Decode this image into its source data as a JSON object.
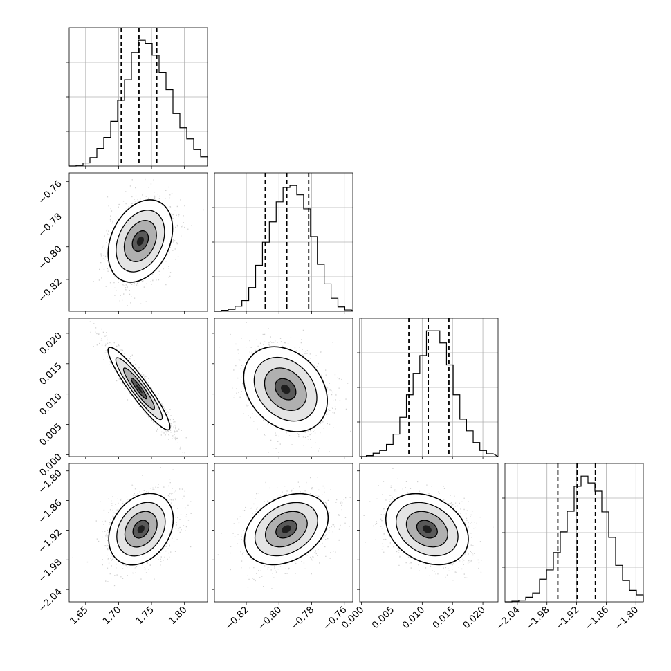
{
  "chart_data": {
    "type": "corner",
    "grid": true,
    "parameters": [
      {
        "range": [
          1.625,
          1.835
        ],
        "ticks": [
          "1.65",
          "1.70",
          "1.75",
          "1.80"
        ],
        "tick_values": [
          1.65,
          1.7,
          1.75,
          1.8
        ],
        "quantiles": [
          1.704,
          1.731,
          1.758
        ]
      },
      {
        "range": [
          -0.8395,
          -0.7548
        ],
        "ticks": [
          "−0.82",
          "−0.80",
          "−0.78",
          "−0.76"
        ],
        "tick_values": [
          -0.82,
          -0.8,
          -0.78,
          -0.76
        ],
        "quantiles": [
          -0.8084,
          -0.7952,
          -0.7818
        ]
      },
      {
        "range": [
          -0.0003,
          0.0225
        ],
        "ticks": [
          "0.000",
          "0.005",
          "0.010",
          "0.015",
          "0.020"
        ],
        "tick_values": [
          0.0,
          0.005,
          0.01,
          0.015,
          0.02
        ],
        "quantiles": [
          0.0078,
          0.011,
          0.0144
        ]
      },
      {
        "range": [
          -2.065,
          -1.785
        ],
        "ticks": [
          "−2.04",
          "−1.98",
          "−1.92",
          "−1.86",
          "−1.80"
        ],
        "tick_values": [
          -2.04,
          -1.98,
          -1.92,
          -1.86,
          -1.8
        ],
        "quantiles": [
          -1.958,
          -1.919,
          -1.882
        ]
      }
    ],
    "histograms": [
      {
        "bin_edges": [
          1.625,
          1.6355,
          1.646,
          1.6565,
          1.667,
          1.6775,
          1.688,
          1.6985,
          1.709,
          1.7195,
          1.73,
          1.7405,
          1.751,
          1.7615,
          1.772,
          1.7825,
          1.793,
          1.8035,
          1.814,
          1.8245,
          1.835
        ],
        "counts": [
          0,
          2,
          8,
          22,
          46,
          75,
          117,
          172,
          226,
          297,
          329,
          321,
          290,
          245,
          200,
          137,
          100,
          71,
          43,
          24
        ]
      },
      {
        "bin_edges": [
          -0.8395,
          -0.8353,
          -0.8311,
          -0.8269,
          -0.8227,
          -0.8185,
          -0.8143,
          -0.8101,
          -0.8059,
          -0.8017,
          -0.7975,
          -0.7933,
          -0.7891,
          -0.7849,
          -0.7807,
          -0.7765,
          -0.7723,
          -0.7681,
          -0.7639,
          -0.7597,
          -0.7555
        ],
        "counts": [
          0,
          3,
          6,
          15,
          32,
          71,
          138,
          207,
          268,
          328,
          371,
          377,
          349,
          307,
          224,
          141,
          82,
          39,
          13,
          4
        ]
      },
      {
        "bin_edges": [
          -0.0003,
          0.0008,
          0.0019,
          0.003,
          0.0041,
          0.0052,
          0.0063,
          0.0074,
          0.0085,
          0.0096,
          0.0107,
          0.0118,
          0.0129,
          0.014,
          0.0151,
          0.0162,
          0.0173,
          0.0184,
          0.0195,
          0.0206,
          0.0217
        ],
        "counts": [
          0,
          2,
          7,
          13,
          26,
          48,
          84,
          132,
          178,
          216,
          269,
          269,
          243,
          196,
          132,
          80,
          55,
          30,
          13,
          6
        ]
      },
      {
        "bin_edges": [
          -2.065,
          -2.051,
          -2.037,
          -2.023,
          -2.009,
          -1.995,
          -1.981,
          -1.967,
          -1.953,
          -1.939,
          -1.925,
          -1.911,
          -1.897,
          -1.883,
          -1.869,
          -1.855,
          -1.841,
          -1.827,
          -1.813,
          -1.799,
          -1.785
        ],
        "counts": [
          0,
          2,
          5,
          14,
          27,
          69,
          97,
          150,
          213,
          276,
          352,
          383,
          362,
          337,
          274,
          196,
          111,
          65,
          35,
          21
        ]
      }
    ],
    "pair_stats": [
      {
        "row": 1,
        "col": 0,
        "center": [
          1.733,
          -0.7965
        ],
        "sd": [
          0.0245,
          0.0126
        ],
        "corr": 0.3
      },
      {
        "row": 2,
        "col": 0,
        "center": [
          1.731,
          0.0109
        ],
        "sd": [
          0.0235,
          0.0034
        ],
        "corr": -0.93
      },
      {
        "row": 2,
        "col": 1,
        "center": [
          -0.796,
          0.0108
        ],
        "sd": [
          0.0128,
          0.0035
        ],
        "corr": -0.27
      },
      {
        "row": 3,
        "col": 0,
        "center": [
          1.734,
          -1.918
        ],
        "sd": [
          0.0245,
          0.0362
        ],
        "corr": 0.28
      },
      {
        "row": 3,
        "col": 1,
        "center": [
          -0.7955,
          -1.918
        ],
        "sd": [
          0.0128,
          0.036
        ],
        "corr": 0.32
      },
      {
        "row": 3,
        "col": 2,
        "center": [
          0.0108,
          -1.918
        ],
        "sd": [
          0.0034,
          0.036
        ],
        "corr": -0.28
      }
    ],
    "colors": {
      "hist": "#000000",
      "points": "#aaaaaa",
      "grid": "#b0b0b0",
      "contour": "#000000"
    }
  }
}
